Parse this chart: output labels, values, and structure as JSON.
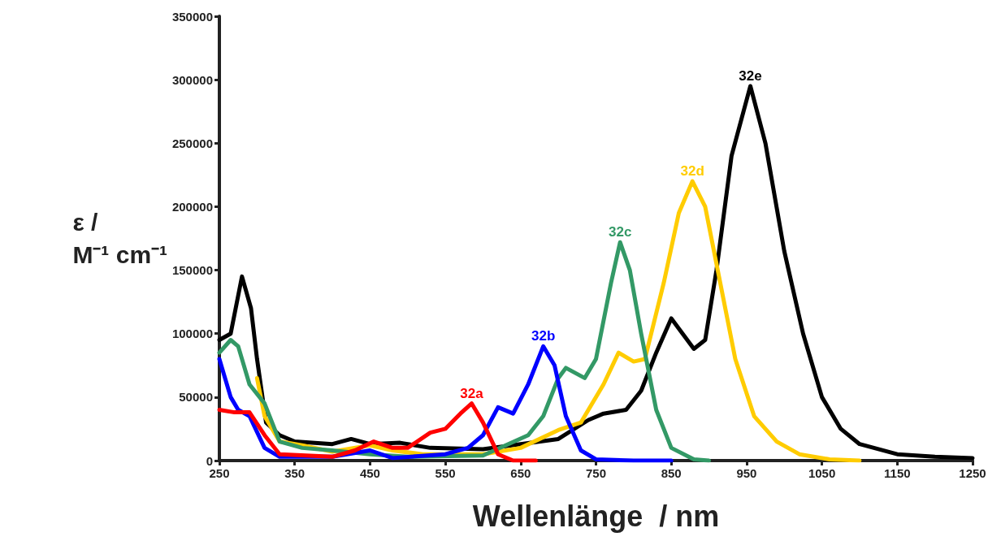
{
  "chart_data": {
    "type": "line",
    "xlabel": "Wellenlänge  / nm",
    "ylabel": "ε /\nM⁻¹ cm⁻¹",
    "xlim": [
      250,
      1250
    ],
    "xticks": [
      250,
      350,
      450,
      550,
      650,
      750,
      850,
      950,
      1050,
      1150,
      1250
    ],
    "ylim": [
      0,
      350000
    ],
    "yticks": [
      0,
      50000,
      100000,
      150000,
      200000,
      250000,
      300000,
      350000
    ],
    "grid": false,
    "legend": false,
    "marker": "none",
    "line_style": "solid",
    "series": [
      {
        "name": "32e",
        "color": "#000000",
        "x": [
          250,
          265,
          280,
          292,
          300,
          312,
          330,
          350,
          400,
          425,
          450,
          490,
          530,
          600,
          650,
          700,
          740,
          760,
          790,
          810,
          830,
          850,
          865,
          880,
          895,
          910,
          930,
          955,
          975,
          1000,
          1025,
          1050,
          1075,
          1100,
          1150,
          1200,
          1250
        ],
        "values": [
          95000,
          100000,
          145000,
          120000,
          80000,
          30000,
          20000,
          15000,
          13000,
          17000,
          13000,
          14000,
          10000,
          9000,
          13000,
          17000,
          32000,
          37000,
          40000,
          55000,
          85000,
          112000,
          100000,
          88000,
          95000,
          150000,
          240000,
          295000,
          250000,
          165000,
          100000,
          50000,
          25000,
          13000,
          5000,
          3000,
          2000
        ]
      },
      {
        "name": "32d",
        "color": "#ffcc00",
        "x": [
          300,
          310,
          330,
          360,
          400,
          450,
          480,
          520,
          600,
          650,
          700,
          730,
          760,
          780,
          800,
          815,
          840,
          860,
          878,
          895,
          915,
          935,
          960,
          990,
          1020,
          1060,
          1100
        ],
        "values": [
          65000,
          35000,
          15000,
          12000,
          7000,
          12000,
          8000,
          5000,
          5000,
          10000,
          24000,
          30000,
          60000,
          85000,
          78000,
          80000,
          140000,
          195000,
          220000,
          200000,
          140000,
          80000,
          35000,
          15000,
          5000,
          1000,
          0
        ]
      },
      {
        "name": "32c",
        "color": "#339966",
        "x": [
          250,
          265,
          275,
          290,
          310,
          330,
          360,
          400,
          450,
          500,
          600,
          630,
          660,
          680,
          700,
          710,
          735,
          750,
          770,
          782,
          795,
          810,
          830,
          850,
          880,
          900
        ],
        "values": [
          85000,
          95000,
          90000,
          60000,
          45000,
          15000,
          10000,
          8000,
          5000,
          3000,
          4000,
          12000,
          20000,
          35000,
          65000,
          73000,
          65000,
          80000,
          140000,
          172000,
          150000,
          100000,
          40000,
          10000,
          1000,
          0
        ]
      },
      {
        "name": "32b",
        "color": "#0000ff",
        "x": [
          250,
          265,
          275,
          290,
          310,
          330,
          400,
          450,
          480,
          550,
          580,
          600,
          620,
          640,
          660,
          680,
          695,
          710,
          730,
          750,
          800,
          850
        ],
        "values": [
          80000,
          50000,
          40000,
          35000,
          10000,
          3000,
          3000,
          8000,
          2000,
          5000,
          10000,
          20000,
          42000,
          37000,
          60000,
          90000,
          75000,
          35000,
          8000,
          1000,
          0,
          0
        ]
      },
      {
        "name": "32a",
        "color": "#ff0000",
        "x": [
          250,
          270,
          290,
          310,
          330,
          400,
          430,
          455,
          480,
          500,
          530,
          550,
          570,
          585,
          600,
          620,
          640,
          670
        ],
        "values": [
          40000,
          38000,
          38000,
          20000,
          5000,
          3000,
          8000,
          15000,
          10000,
          10000,
          22000,
          25000,
          37000,
          45000,
          30000,
          5000,
          0,
          0
        ]
      }
    ]
  }
}
